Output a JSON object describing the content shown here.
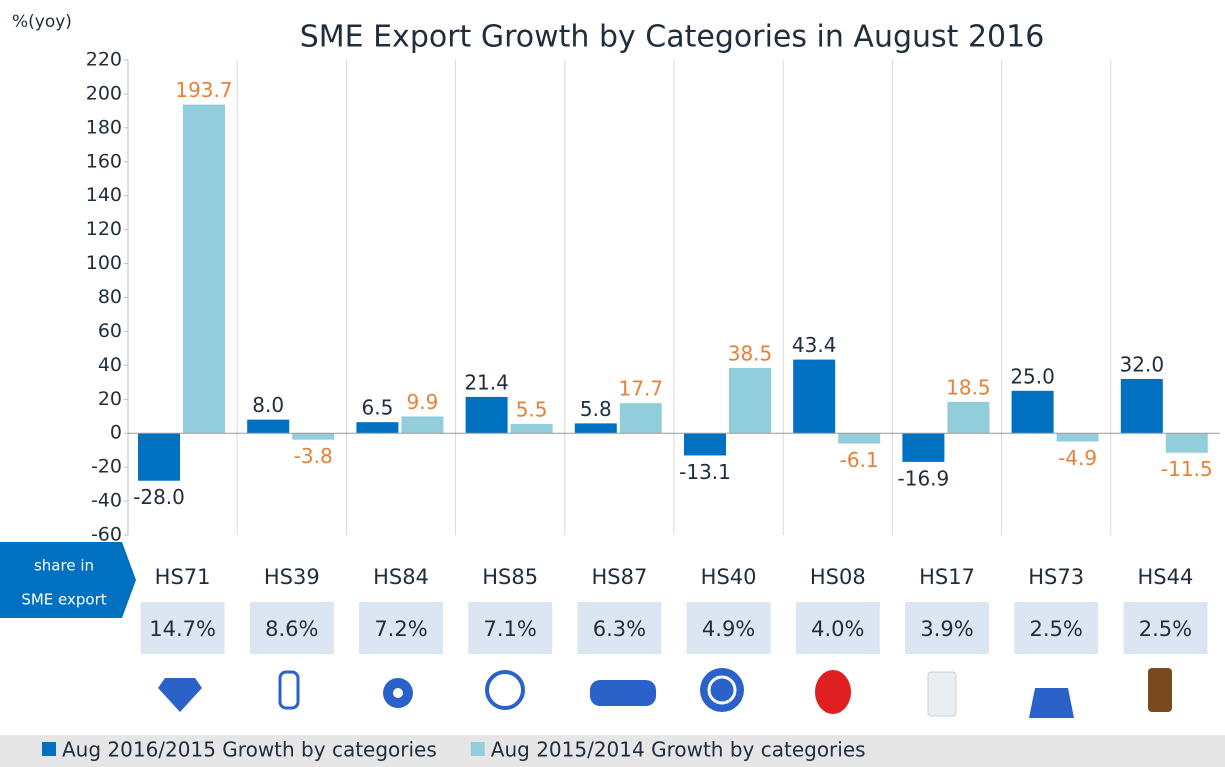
{
  "chart_data": {
    "type": "bar",
    "title": "SME Export Growth by Categories in August 2016",
    "y_label": "%(yoy)",
    "categories": [
      "HS71",
      "HS39",
      "HS84",
      "HS85",
      "HS87",
      "HS40",
      "HS08",
      "HS17",
      "HS73",
      "HS44"
    ],
    "series": [
      {
        "name": "Aug 2016/2015 Growth by categories",
        "color": "#0070c0",
        "label_color": "#1f2d3d",
        "values": [
          -28.0,
          8.0,
          6.5,
          21.4,
          5.8,
          -13.1,
          43.4,
          -16.9,
          25.0,
          32.0
        ],
        "value_labels": [
          "-28.0",
          "8.0",
          "6.5",
          "21.4",
          "5.8",
          "-13.1",
          "43.4",
          "-16.9",
          "25.0",
          "32.0"
        ]
      },
      {
        "name": "Aug 2015/2014 Growth by categories",
        "color": "#92cddc",
        "label_color": "#e8803a",
        "values": [
          193.7,
          -3.8,
          9.9,
          5.5,
          17.7,
          38.5,
          -6.1,
          18.5,
          -4.9,
          -11.5
        ],
        "value_labels": [
          "193.7",
          "-3.8",
          "9.9",
          "5.5",
          "17.7",
          "38.5",
          "-6.1",
          "18.5",
          "-4.9",
          "-11.5"
        ]
      }
    ],
    "share_header": [
      "share in",
      "SME export"
    ],
    "shares": [
      "14.7%",
      "8.6%",
      "7.2%",
      "7.1%",
      "6.3%",
      "4.9%",
      "4.0%",
      "3.9%",
      "2.5%",
      "2.5%"
    ],
    "ylim": [
      -60,
      220
    ],
    "yticks": [
      -60,
      -40,
      -20,
      0,
      20,
      40,
      60,
      80,
      100,
      120,
      140,
      160,
      180,
      200,
      220
    ],
    "grid": true
  }
}
